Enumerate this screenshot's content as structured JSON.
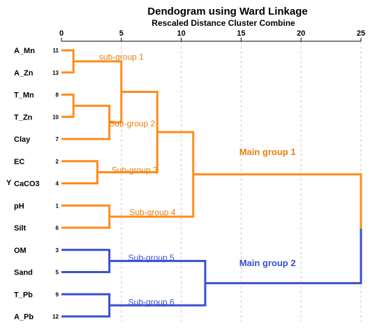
{
  "chart_data": {
    "type": "dendrogram",
    "title": "Dendogram using Ward Linkage",
    "subtitle": "Rescaled Distance Cluster Combine",
    "y_marker": "Y",
    "x_ticks": [
      0,
      5,
      10,
      15,
      20,
      25
    ],
    "xlim": [
      0,
      25
    ],
    "grid": true,
    "leaves": [
      {
        "label": "A_Mn",
        "case": "11"
      },
      {
        "label": "A_Zn",
        "case": "13"
      },
      {
        "label": "T_Mn",
        "case": "8"
      },
      {
        "label": "T_Zn",
        "case": "10"
      },
      {
        "label": "Clay",
        "case": "7"
      },
      {
        "label": "EC",
        "case": "2"
      },
      {
        "label": "CaCO3",
        "case": "4"
      },
      {
        "label": "pH",
        "case": "1"
      },
      {
        "label": "Silt",
        "case": "6"
      },
      {
        "label": "OM",
        "case": "3"
      },
      {
        "label": "Sand",
        "case": "5"
      },
      {
        "label": "T_Pb",
        "case": "9"
      },
      {
        "label": "A_Pb",
        "case": "12"
      }
    ],
    "merges": [
      {
        "id": "m1",
        "children": [
          "L0",
          "L1"
        ],
        "distance": 1.0,
        "group": "orange"
      },
      {
        "id": "m2",
        "children": [
          "L2",
          "L3"
        ],
        "distance": 1.0,
        "group": "orange"
      },
      {
        "id": "m3",
        "children": [
          "m2",
          "L4"
        ],
        "distance": 4.0,
        "group": "orange"
      },
      {
        "id": "m4",
        "children": [
          "m1",
          "m3"
        ],
        "distance": 5.0,
        "group": "orange"
      },
      {
        "id": "m5",
        "children": [
          "L5",
          "L6"
        ],
        "distance": 3.0,
        "group": "orange"
      },
      {
        "id": "m6",
        "children": [
          "m4",
          "m5"
        ],
        "distance": 8.0,
        "group": "orange"
      },
      {
        "id": "m7",
        "children": [
          "L7",
          "L8"
        ],
        "distance": 4.0,
        "group": "orange"
      },
      {
        "id": "m8",
        "children": [
          "m6",
          "m7"
        ],
        "distance": 11.0,
        "group": "orange"
      },
      {
        "id": "m9",
        "children": [
          "L9",
          "L10"
        ],
        "distance": 4.0,
        "group": "blue"
      },
      {
        "id": "m10",
        "children": [
          "L11",
          "L12"
        ],
        "distance": 4.0,
        "group": "blue"
      },
      {
        "id": "m11",
        "children": [
          "m9",
          "m10"
        ],
        "distance": 12.0,
        "group": "blue"
      },
      {
        "id": "m12",
        "children": [
          "m8",
          "m11"
        ],
        "distance": 25.0,
        "group": "mixed"
      }
    ],
    "annotations": [
      {
        "text": "sub-group 1",
        "x": 5.0,
        "leaf": 0.3,
        "group": "orange",
        "main": false
      },
      {
        "text": "Sub-group 2",
        "x": 5.9,
        "leaf": 3.3,
        "group": "orange",
        "main": false
      },
      {
        "text": "Sub-group 3",
        "x": 6.1,
        "leaf": 5.4,
        "group": "orange",
        "main": false
      },
      {
        "text": "Sub-group 4",
        "x": 7.6,
        "leaf": 7.3,
        "group": "orange",
        "main": false
      },
      {
        "text": "Main group 1",
        "x": 17.2,
        "leaf": 4.6,
        "group": "orange",
        "main": true
      },
      {
        "text": "Sub-group 5",
        "x": 7.5,
        "leaf": 9.35,
        "group": "blue",
        "main": false
      },
      {
        "text": "Main group 2",
        "x": 17.2,
        "leaf": 9.6,
        "group": "blue",
        "main": true
      },
      {
        "text": "Sub-group 6",
        "x": 7.5,
        "leaf": 11.35,
        "group": "blue",
        "main": false
      }
    ],
    "colors": {
      "orange": "#ff8c1a",
      "blue": "#3a4fd0",
      "orange_text": "#e8800f",
      "blue_text": "#3a4fd0"
    }
  }
}
